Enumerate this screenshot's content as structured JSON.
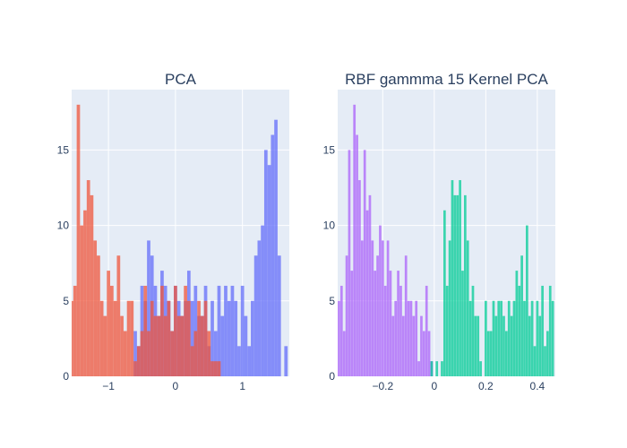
{
  "colors": {
    "plot_bg": "#E5ECF6",
    "gridline": "#ffffff",
    "text": "#2a3f5f",
    "pca_blue": "#636EFA",
    "pca_red": "#EF553B",
    "kpca_purple": "#AB63FA",
    "kpca_green": "#00CC96"
  },
  "chart_data": [
    {
      "type": "bar",
      "subtype": "overlaid-histogram",
      "title": "PCA",
      "xlabel": "",
      "ylabel": "",
      "xlim": [
        -1.55,
        1.7
      ],
      "ylim": [
        0,
        19
      ],
      "xticks": [
        -1,
        0,
        1
      ],
      "xtick_labels": [
        "−1",
        "0",
        "1"
      ],
      "yticks": [
        0,
        5,
        10,
        15
      ],
      "ytick_labels": [
        "0",
        "5",
        "10",
        "15"
      ],
      "grid": true,
      "legend": "none",
      "bin_width": 0.0497,
      "series": [
        {
          "color_key": "pca_blue",
          "opacity": 0.75,
          "x": [
            -0.6,
            -0.55,
            -0.5,
            -0.45,
            -0.4,
            -0.35,
            -0.3,
            -0.25,
            -0.2,
            -0.15,
            -0.1,
            -0.05,
            0,
            0.05,
            0.1,
            0.15,
            0.2,
            0.25,
            0.3,
            0.35,
            0.4,
            0.45,
            0.5,
            0.55,
            0.6,
            0.65,
            0.7,
            0.75,
            0.8,
            0.85,
            0.9,
            0.95,
            1,
            1.05,
            1.1,
            1.15,
            1.2,
            1.25,
            1.3,
            1.35,
            1.4,
            1.45,
            1.5,
            1.55,
            1.6,
            1.65
          ],
          "y": [
            3,
            2,
            6,
            5,
            9,
            8,
            6,
            4,
            7,
            6,
            5,
            3,
            6,
            5,
            4,
            5,
            7,
            5,
            6,
            4,
            4,
            6,
            2,
            5,
            3,
            6,
            4,
            6,
            5,
            6,
            5,
            2,
            6,
            4,
            2,
            5,
            8,
            9,
            10,
            15,
            14,
            16,
            17,
            8,
            0,
            2
          ]
        },
        {
          "color_key": "pca_red",
          "opacity": 0.75,
          "x": [
            -1.55,
            -1.5,
            -1.45,
            -1.4,
            -1.35,
            -1.3,
            -1.25,
            -1.2,
            -1.15,
            -1.1,
            -1.05,
            -1,
            -0.95,
            -0.9,
            -0.85,
            -0.8,
            -0.75,
            -0.7,
            -0.65,
            -0.6,
            -0.55,
            -0.5,
            -0.45,
            -0.4,
            -0.35,
            -0.3,
            -0.25,
            -0.2,
            -0.15,
            -0.1,
            -0.05,
            0,
            0.05,
            0.1,
            0.15,
            0.2,
            0.25,
            0.3,
            0.35,
            0.4,
            0.45,
            0.5,
            0.55,
            0.6,
            0.65
          ],
          "y": [
            5,
            6,
            18,
            10,
            11,
            13,
            12,
            9,
            8,
            5,
            4,
            7,
            6,
            5,
            8,
            4,
            3,
            5,
            5,
            1,
            2,
            3,
            6,
            3,
            5,
            4,
            4,
            6,
            4,
            5,
            3,
            6,
            4,
            4,
            6,
            5,
            2,
            3,
            5,
            4,
            5,
            3,
            1,
            1,
            1
          ]
        }
      ]
    },
    {
      "type": "bar",
      "subtype": "overlaid-histogram",
      "title": "RBF gammma 15 Kernel PCA",
      "xlabel": "",
      "ylabel": "",
      "xlim": [
        -0.375,
        0.47
      ],
      "ylim": [
        0,
        19
      ],
      "xticks": [
        -0.2,
        0,
        0.2,
        0.4
      ],
      "xtick_labels": [
        "−0.2",
        "0",
        "0.2",
        "0.4"
      ],
      "yticks": [
        0,
        5,
        10,
        15
      ],
      "ytick_labels": [
        "0",
        "5",
        "10",
        "15"
      ],
      "grid": true,
      "legend": "none",
      "bin_width": 0.0094,
      "series": [
        {
          "color_key": "kpca_purple",
          "opacity": 0.75,
          "x": [
            -0.37,
            -0.36,
            -0.35,
            -0.34,
            -0.33,
            -0.32,
            -0.31,
            -0.3,
            -0.29,
            -0.28,
            -0.27,
            -0.26,
            -0.25,
            -0.24,
            -0.23,
            -0.22,
            -0.21,
            -0.2,
            -0.19,
            -0.18,
            -0.17,
            -0.16,
            -0.15,
            -0.14,
            -0.13,
            -0.12,
            -0.11,
            -0.1,
            -0.09,
            -0.08,
            -0.07,
            -0.06,
            -0.05,
            -0.04,
            -0.03,
            -0.02,
            -0.01
          ],
          "y": [
            5,
            6,
            3,
            8,
            15,
            7,
            18,
            16,
            13,
            9,
            15,
            11,
            12,
            9,
            7,
            8,
            10,
            9,
            6,
            9,
            7,
            4,
            5,
            7,
            6,
            4,
            8,
            5,
            5,
            4,
            5,
            1,
            4,
            3,
            6,
            3,
            1
          ]
        },
        {
          "color_key": "kpca_green",
          "opacity": 0.75,
          "x": [
            -0.01,
            0.01,
            0.03,
            0.04,
            0.05,
            0.06,
            0.07,
            0.08,
            0.09,
            0.1,
            0.11,
            0.12,
            0.13,
            0.14,
            0.15,
            0.16,
            0.17,
            0.18,
            0.2,
            0.21,
            0.22,
            0.23,
            0.24,
            0.25,
            0.26,
            0.27,
            0.28,
            0.29,
            0.3,
            0.31,
            0.32,
            0.33,
            0.34,
            0.35,
            0.36,
            0.37,
            0.38,
            0.39,
            0.4,
            0.41,
            0.42,
            0.43,
            0.44,
            0.45,
            0.46
          ],
          "y": [
            1,
            1,
            1,
            11,
            6,
            9,
            13,
            12,
            12,
            13,
            7,
            12,
            9,
            5,
            6,
            4,
            4,
            1,
            5,
            3,
            3,
            5,
            4,
            5,
            5,
            4,
            3,
            5,
            4,
            5,
            7,
            6,
            8,
            5,
            10,
            4,
            5,
            2,
            5,
            4,
            6,
            2,
            3,
            6,
            5
          ]
        }
      ]
    }
  ]
}
